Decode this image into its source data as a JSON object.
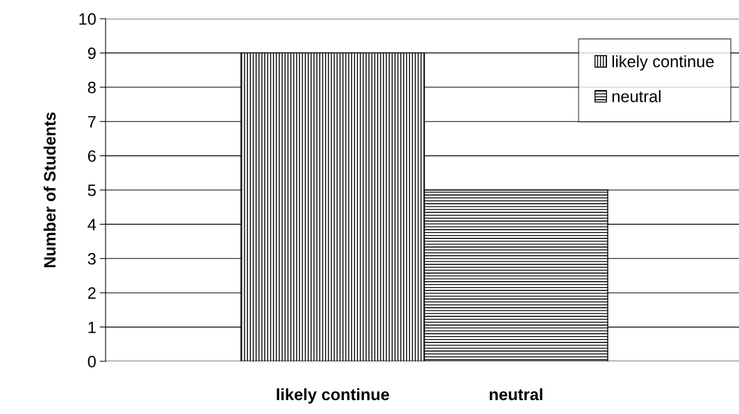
{
  "chart_data": {
    "type": "bar",
    "ylabel": "Number of Students",
    "categories": [
      "likely continue",
      "neutral"
    ],
    "series": [
      {
        "name": "likely continue",
        "color": "#000000",
        "values": [
          9,
          null
        ]
      },
      {
        "name": "neutral",
        "color": "#000000",
        "values": [
          null,
          5
        ]
      }
    ],
    "ylim": [
      0,
      10
    ],
    "yticks": [
      0,
      1,
      2,
      3,
      4,
      5,
      6,
      7,
      8,
      9,
      10
    ],
    "grid": "y",
    "legend": "top right"
  }
}
